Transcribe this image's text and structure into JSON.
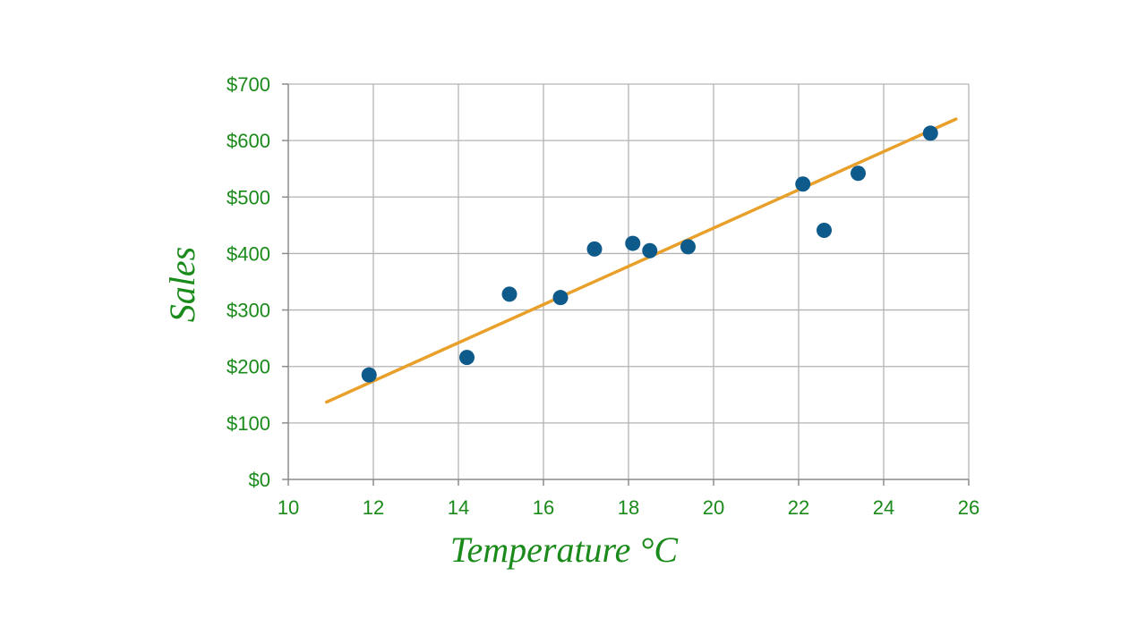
{
  "chart_data": {
    "type": "scatter",
    "title": "",
    "xlabel": "Temperature °C",
    "ylabel": "Sales",
    "xlim": [
      10,
      26
    ],
    "ylim": [
      0,
      700
    ],
    "x_ticks": [
      10,
      12,
      14,
      16,
      18,
      20,
      22,
      24,
      26
    ],
    "y_ticks": [
      0,
      100,
      200,
      300,
      400,
      500,
      600,
      700
    ],
    "y_tick_labels": [
      "$0",
      "$100",
      "$200",
      "$300",
      "$400",
      "$500",
      "$600",
      "$700"
    ],
    "x_tick_labels": [
      "10",
      "12",
      "14",
      "16",
      "18",
      "20",
      "22",
      "24",
      "26"
    ],
    "grid": true,
    "series": [
      {
        "x": [
          11.9,
          14.2,
          15.2,
          16.4,
          17.2,
          18.1,
          18.5,
          19.4,
          22.1,
          22.6,
          23.4,
          25.1
        ],
        "y": [
          185,
          216,
          328,
          322,
          408,
          418,
          405,
          412,
          523,
          441,
          542,
          613
        ]
      }
    ],
    "trendline": {
      "x": [
        10.9,
        25.7
      ],
      "y": [
        137,
        638
      ]
    },
    "colors": {
      "points": "#0e5a8a",
      "trendline": "#e8a02b",
      "text": "#1a8a1a",
      "grid": "#b3b3b3",
      "axis": "#8c8c8c"
    }
  }
}
